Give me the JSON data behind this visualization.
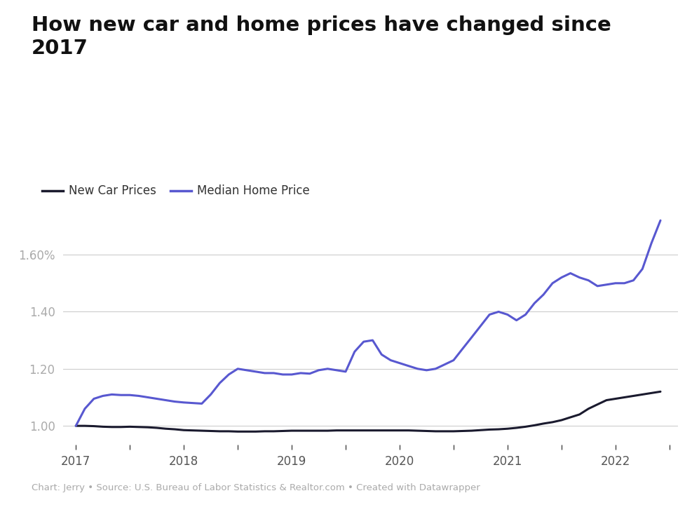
{
  "title": "How new car and home prices have changed since\n2017",
  "caption": "Chart: Jerry • Source: U.S. Bureau of Labor Statistics & Realtor.com • Created with Datawrapper",
  "legend": [
    {
      "label": "New Car Prices",
      "color": "#1a1a2e",
      "lw": 2.2
    },
    {
      "label": "Median Home Price",
      "color": "#5858d0",
      "lw": 2.2
    }
  ],
  "ylim": [
    0.935,
    1.82
  ],
  "ytick_vals": [
    1.0,
    1.2,
    1.4,
    1.6
  ],
  "ytick_labels": [
    "1.00",
    "1.20",
    "1.40",
    "1.60%"
  ],
  "xtick_years": [
    2017,
    2018,
    2019,
    2020,
    2021,
    2022
  ],
  "background_color": "#ffffff",
  "grid_color": "#cccccc",
  "new_car": {
    "x": [
      2017.0,
      2017.083,
      2017.167,
      2017.25,
      2017.333,
      2017.417,
      2017.5,
      2017.583,
      2017.667,
      2017.75,
      2017.833,
      2017.917,
      2018.0,
      2018.083,
      2018.167,
      2018.25,
      2018.333,
      2018.417,
      2018.5,
      2018.583,
      2018.667,
      2018.75,
      2018.833,
      2018.917,
      2019.0,
      2019.083,
      2019.167,
      2019.25,
      2019.333,
      2019.417,
      2019.5,
      2019.583,
      2019.667,
      2019.75,
      2019.833,
      2019.917,
      2020.0,
      2020.083,
      2020.167,
      2020.25,
      2020.333,
      2020.417,
      2020.5,
      2020.583,
      2020.667,
      2020.75,
      2020.833,
      2020.917,
      2021.0,
      2021.083,
      2021.167,
      2021.25,
      2021.333,
      2021.417,
      2021.5,
      2021.583,
      2021.667,
      2021.75,
      2021.833,
      2021.917,
      2022.0,
      2022.083,
      2022.167,
      2022.25,
      2022.333,
      2022.417
    ],
    "y": [
      1.0,
      1.0,
      0.999,
      0.997,
      0.996,
      0.996,
      0.997,
      0.996,
      0.995,
      0.993,
      0.99,
      0.988,
      0.985,
      0.984,
      0.983,
      0.982,
      0.981,
      0.981,
      0.98,
      0.98,
      0.98,
      0.981,
      0.981,
      0.982,
      0.983,
      0.983,
      0.983,
      0.983,
      0.983,
      0.984,
      0.984,
      0.984,
      0.984,
      0.984,
      0.984,
      0.984,
      0.984,
      0.984,
      0.983,
      0.982,
      0.981,
      0.981,
      0.981,
      0.982,
      0.983,
      0.985,
      0.987,
      0.988,
      0.99,
      0.993,
      0.997,
      1.002,
      1.008,
      1.013,
      1.02,
      1.03,
      1.04,
      1.06,
      1.075,
      1.09,
      1.095,
      1.1,
      1.105,
      1.11,
      1.115,
      1.12
    ]
  },
  "home": {
    "x": [
      2017.0,
      2017.083,
      2017.167,
      2017.25,
      2017.333,
      2017.417,
      2017.5,
      2017.583,
      2017.667,
      2017.75,
      2017.833,
      2017.917,
      2018.0,
      2018.083,
      2018.167,
      2018.25,
      2018.333,
      2018.417,
      2018.5,
      2018.583,
      2018.667,
      2018.75,
      2018.833,
      2018.917,
      2019.0,
      2019.083,
      2019.167,
      2019.25,
      2019.333,
      2019.417,
      2019.5,
      2019.583,
      2019.667,
      2019.75,
      2019.833,
      2019.917,
      2020.0,
      2020.083,
      2020.167,
      2020.25,
      2020.333,
      2020.417,
      2020.5,
      2020.583,
      2020.667,
      2020.75,
      2020.833,
      2020.917,
      2021.0,
      2021.083,
      2021.167,
      2021.25,
      2021.333,
      2021.417,
      2021.5,
      2021.583,
      2021.667,
      2021.75,
      2021.833,
      2021.917,
      2022.0,
      2022.083,
      2022.167,
      2022.25,
      2022.333,
      2022.417
    ],
    "y": [
      1.0,
      1.06,
      1.095,
      1.105,
      1.11,
      1.108,
      1.108,
      1.105,
      1.1,
      1.095,
      1.09,
      1.085,
      1.082,
      1.08,
      1.078,
      1.11,
      1.15,
      1.18,
      1.2,
      1.195,
      1.19,
      1.185,
      1.185,
      1.18,
      1.18,
      1.185,
      1.183,
      1.195,
      1.2,
      1.195,
      1.19,
      1.26,
      1.295,
      1.3,
      1.25,
      1.23,
      1.22,
      1.21,
      1.2,
      1.195,
      1.2,
      1.215,
      1.23,
      1.27,
      1.31,
      1.35,
      1.39,
      1.4,
      1.39,
      1.37,
      1.39,
      1.43,
      1.46,
      1.5,
      1.52,
      1.535,
      1.52,
      1.51,
      1.49,
      1.495,
      1.5,
      1.5,
      1.51,
      1.55,
      1.64,
      1.72
    ]
  }
}
